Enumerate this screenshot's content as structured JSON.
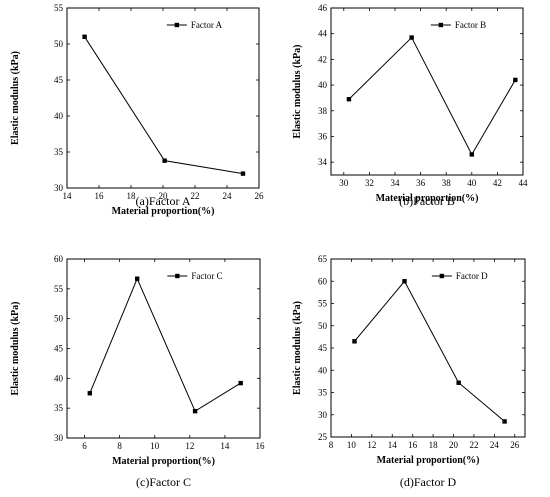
{
  "chart_data": [
    {
      "type": "line",
      "caption": "(a)Factor A",
      "xlabel": "Material proportion(%)",
      "ylabel": "Elastic modulus (kPa)",
      "xlim": [
        14,
        26
      ],
      "ylim": [
        30,
        55
      ],
      "xticks": [
        14,
        16,
        18,
        20,
        22,
        24,
        26
      ],
      "yticks": [
        30,
        35,
        40,
        45,
        50,
        55
      ],
      "legend_position": "top-right",
      "series": [
        {
          "name": "Factor A",
          "x": [
            15.1,
            20.1,
            25.0
          ],
          "y": [
            51.0,
            33.8,
            32.0
          ]
        }
      ]
    },
    {
      "type": "line",
      "caption": "(b)Factor B",
      "xlabel": "Material proportion(%)",
      "ylabel": "Elastic modulus (kPa)",
      "xlim": [
        29,
        44
      ],
      "ylim": [
        33,
        46
      ],
      "xticks": [
        30,
        32,
        34,
        36,
        38,
        40,
        42,
        44
      ],
      "yticks": [
        34,
        36,
        38,
        40,
        42,
        44,
        46
      ],
      "legend_position": "top-right",
      "series": [
        {
          "name": "Factor B",
          "x": [
            30.4,
            35.3,
            40.0,
            43.4
          ],
          "y": [
            38.9,
            43.7,
            34.6,
            40.4
          ]
        }
      ]
    },
    {
      "type": "line",
      "caption": "(c)Factor C",
      "xlabel": "Material proportion(%)",
      "ylabel": "Elastic modulus (kPa)",
      "xlim": [
        5,
        16
      ],
      "ylim": [
        30,
        60
      ],
      "xticks": [
        6,
        8,
        10,
        12,
        14,
        16
      ],
      "yticks": [
        30,
        35,
        40,
        45,
        50,
        55,
        60
      ],
      "legend_position": "top-right",
      "series": [
        {
          "name": "Factor C",
          "x": [
            6.3,
            9.0,
            12.3,
            14.9
          ],
          "y": [
            37.5,
            56.7,
            34.5,
            39.2
          ]
        }
      ]
    },
    {
      "type": "line",
      "caption": "(d)Factor D",
      "xlabel": "Material proportion(%)",
      "ylabel": "Elastic modulus (kPa)",
      "xlim": [
        8,
        27
      ],
      "ylim": [
        25,
        65
      ],
      "xticks": [
        8,
        10,
        12,
        14,
        16,
        18,
        20,
        22,
        24,
        26
      ],
      "yticks": [
        25,
        30,
        35,
        40,
        45,
        50,
        55,
        60,
        65
      ],
      "legend_position": "top-right",
      "series": [
        {
          "name": "Factor D",
          "x": [
            10.3,
            15.2,
            20.5,
            25.0
          ],
          "y": [
            46.5,
            60.0,
            37.2,
            28.5
          ]
        }
      ]
    }
  ]
}
